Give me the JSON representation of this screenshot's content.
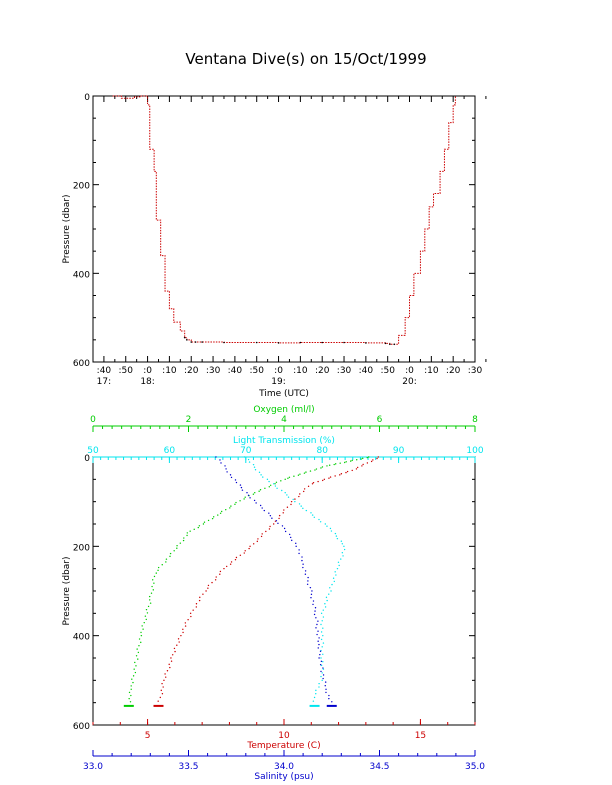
{
  "title": "Ventana Dive(s) on 15/Oct/1999",
  "colors": {
    "axis": "#000000",
    "temperature": "#cc0000",
    "oxygen": "#00cc00",
    "light": "#00e5ee",
    "salinity": "#0000cc"
  },
  "chart_data": [
    {
      "type": "line",
      "title": "Ventana Dive(s) on 15/Oct/1999",
      "xlabel": "Time (UTC)",
      "ylabel": "Pressure (dbar)",
      "y_reversed": true,
      "ylim": [
        0,
        600
      ],
      "y_ticks": [
        "0",
        "200",
        "400",
        "600"
      ],
      "xlim": [
        "17:35",
        "20:30"
      ],
      "x_ticks": [
        ":40",
        ":50",
        ":0",
        ":10",
        ":20",
        ":30",
        ":40",
        ":50",
        ":0",
        ":10",
        ":20",
        ":30",
        ":40",
        ":50",
        ":0",
        ":10",
        ":20",
        ":30"
      ],
      "x_hour_labels": [
        {
          "label": "17:",
          "time": "17:40"
        },
        {
          "label": "18:",
          "time": "18:00"
        },
        {
          "label": "19:",
          "time": "19:00"
        },
        {
          "label": "20:",
          "time": "20:00"
        }
      ],
      "grid": false,
      "series": [
        {
          "color": "#cc0000",
          "x": [
            "17:44",
            "17:48",
            "17:54",
            "17:57",
            "18:00",
            "18:01",
            "18:03",
            "18:04",
            "18:06",
            "18:08",
            "18:10",
            "18:12",
            "18:14",
            "18:15",
            "18:17",
            "18:18",
            "18:20",
            "18:22",
            "18:25",
            "18:35",
            "18:50",
            "19:00",
            "19:10",
            "19:20",
            "19:30",
            "19:40",
            "19:49",
            "19:51",
            "19:53",
            "19:55",
            "19:58",
            "20:00",
            "20:02",
            "20:05",
            "20:07",
            "20:09",
            "20:11",
            "20:12",
            "20:14",
            "20:16",
            "20:18",
            "20:20",
            "20:21"
          ],
          "y": [
            0,
            5,
            2,
            0,
            20,
            120,
            170,
            280,
            360,
            440,
            480,
            510,
            510,
            530,
            545,
            550,
            555,
            555,
            555,
            556,
            556,
            557,
            556,
            556,
            556,
            557,
            558,
            560,
            560,
            540,
            500,
            450,
            400,
            350,
            300,
            250,
            220,
            220,
            170,
            120,
            60,
            20,
            0
          ]
        }
      ]
    },
    {
      "type": "scatter",
      "ylabel": "Pressure (dbar)",
      "y_reversed": true,
      "ylim": [
        0,
        600
      ],
      "y_ticks": [
        "0",
        "200",
        "400",
        "600"
      ],
      "grid": false,
      "axes": [
        {
          "key": "oxygen",
          "label": "Oxygen (ml/l)",
          "range": [
            0,
            8
          ],
          "ticks": [
            "0",
            "2",
            "4",
            "6",
            "8"
          ],
          "position": "top",
          "color": "#00cc00"
        },
        {
          "key": "light",
          "label": "Light Transmission (%)",
          "range": [
            50,
            100
          ],
          "ticks": [
            "50",
            "60",
            "70",
            "80",
            "90",
            "100"
          ],
          "position": "top",
          "color": "#00e5ee"
        },
        {
          "key": "temperature",
          "label": "Temperature (C)",
          "range": [
            3,
            17
          ],
          "ticks": [
            "5",
            "10",
            "15"
          ],
          "position": "bottom",
          "color": "#cc0000"
        },
        {
          "key": "salinity",
          "label": "Salinity (psu)",
          "range": [
            33.0,
            35.0
          ],
          "ticks": [
            "33.0",
            "33.5",
            "34.0",
            "34.5",
            "35.0"
          ],
          "position": "bottom",
          "color": "#0000cc"
        }
      ],
      "series": [
        {
          "axis": "temperature",
          "color": "#cc0000",
          "pressure": [
            0,
            30,
            60,
            100,
            150,
            200,
            250,
            300,
            350,
            400,
            450,
            500,
            530,
            555
          ],
          "values": [
            13.5,
            12.5,
            11.0,
            10.3,
            9.6,
            8.8,
            7.8,
            7.1,
            6.6,
            6.2,
            5.9,
            5.6,
            5.5,
            5.4
          ]
        },
        {
          "axis": "oxygen",
          "color": "#00cc00",
          "pressure": [
            0,
            20,
            50,
            90,
            130,
            170,
            210,
            260,
            320,
            400,
            460,
            520,
            555
          ],
          "values": [
            5.8,
            4.9,
            4.0,
            3.2,
            2.6,
            2.0,
            1.7,
            1.3,
            1.2,
            1.0,
            0.9,
            0.8,
            0.75
          ]
        },
        {
          "axis": "light",
          "color": "#00e5ee",
          "pressure": [
            0,
            40,
            80,
            120,
            160,
            200,
            250,
            300,
            350,
            400,
            450,
            500,
            530,
            555
          ],
          "values": [
            70,
            72,
            75,
            78,
            81,
            83,
            82,
            81,
            80,
            80,
            80,
            80,
            79,
            79
          ]
        },
        {
          "axis": "salinity",
          "color": "#0000cc",
          "pressure": [
            0,
            40,
            80,
            120,
            160,
            200,
            240,
            300,
            360,
            420,
            480,
            520,
            555
          ],
          "values": [
            33.65,
            33.72,
            33.8,
            33.9,
            34.0,
            34.07,
            34.1,
            34.14,
            34.17,
            34.18,
            34.2,
            34.22,
            34.25
          ]
        }
      ]
    }
  ]
}
